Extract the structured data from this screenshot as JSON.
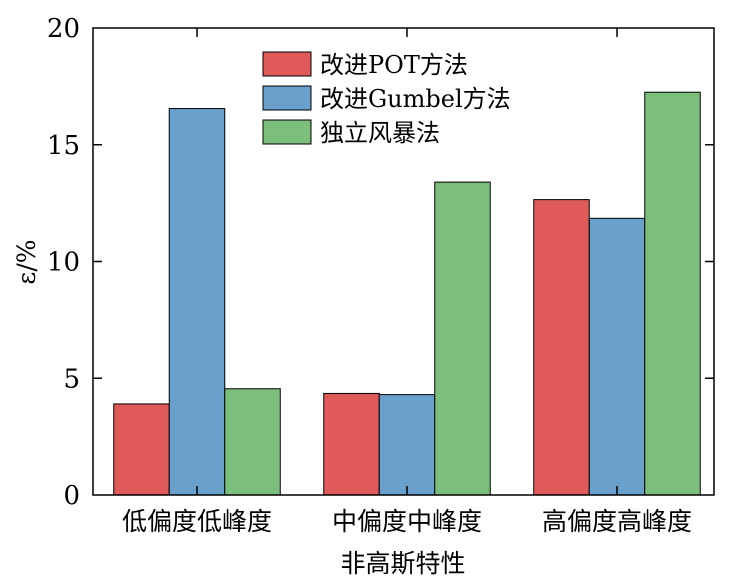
{
  "chart_data": {
    "type": "bar",
    "categories": [
      "低偏度低峰度",
      "中偏度中峰度",
      "高偏度高峰度"
    ],
    "series": [
      {
        "name": "改进POT方法",
        "values": [
          3.9,
          4.35,
          12.65
        ],
        "color": "#e05a5a"
      },
      {
        "name": "改进Gumbel方法",
        "values": [
          16.55,
          4.3,
          11.85
        ],
        "color": "#6aa0cc"
      },
      {
        "name": "独立风暴法",
        "values": [
          4.55,
          13.4,
          17.25
        ],
        "color": "#7cbf7c"
      }
    ],
    "title": "",
    "xlabel": "非高斯特性",
    "ylabel": "ε/%",
    "ylim": [
      0,
      20
    ],
    "yticks": [
      "0",
      "5",
      "10",
      "15",
      "20"
    ],
    "legend_position": "top-center",
    "grid": false
  }
}
